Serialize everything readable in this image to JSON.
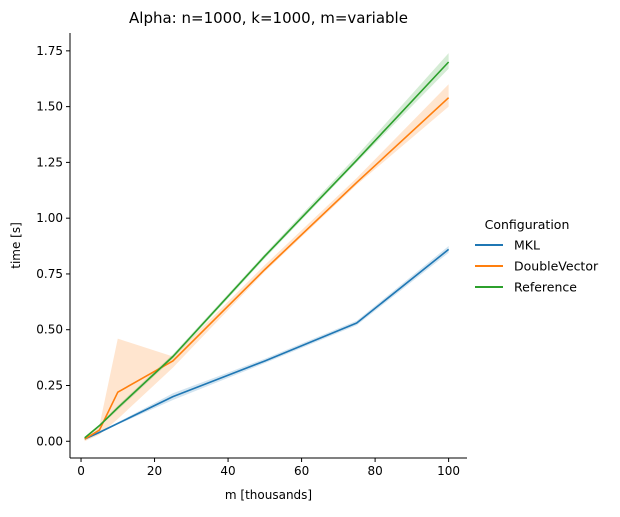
{
  "chart_data": {
    "type": "line",
    "title": "Alpha: n=1000, k=1000, m=variable",
    "xlabel": "m [thousands]",
    "ylabel": "time [s]",
    "xlim": [
      -3,
      105
    ],
    "ylim": [
      -0.075,
      1.83
    ],
    "xticks": [
      0,
      20,
      40,
      60,
      80,
      100
    ],
    "yticks": [
      0.0,
      0.25,
      0.5,
      0.75,
      1.0,
      1.25,
      1.5,
      1.75
    ],
    "xtick_labels": [
      "0",
      "20",
      "40",
      "60",
      "80",
      "100"
    ],
    "ytick_labels": [
      "0.00",
      "0.25",
      "0.50",
      "0.75",
      "1.00",
      "1.25",
      "1.50",
      "1.75"
    ],
    "grid": false,
    "legend": {
      "title": "Configuration",
      "placement": "outside-right"
    },
    "series": [
      {
        "name": "MKL",
        "color": "#1f77b4",
        "x": [
          1,
          5,
          10,
          25,
          50,
          75,
          100
        ],
        "y": [
          0.01,
          0.04,
          0.08,
          0.2,
          0.36,
          0.53,
          0.86
        ],
        "ci_low": [
          0.005,
          0.035,
          0.075,
          0.185,
          0.35,
          0.52,
          0.845
        ],
        "ci_high": [
          0.015,
          0.045,
          0.085,
          0.215,
          0.37,
          0.54,
          0.875
        ]
      },
      {
        "name": "DoubleVector",
        "color": "#ff7f0e",
        "x": [
          1,
          5,
          10,
          25,
          50,
          75,
          100
        ],
        "y": [
          0.01,
          0.05,
          0.22,
          0.36,
          0.77,
          1.16,
          1.54
        ],
        "ci_low": [
          0.0,
          0.03,
          0.1,
          0.33,
          0.76,
          1.15,
          1.5
        ],
        "ci_high": [
          0.02,
          0.07,
          0.46,
          0.38,
          0.79,
          1.18,
          1.6
        ]
      },
      {
        "name": "Reference",
        "color": "#2ca02c",
        "x": [
          1,
          5,
          10,
          25,
          50,
          75,
          100
        ],
        "y": [
          0.015,
          0.07,
          0.15,
          0.38,
          0.83,
          1.26,
          1.7
        ],
        "ci_low": [
          0.01,
          0.065,
          0.14,
          0.37,
          0.82,
          1.25,
          1.67
        ],
        "ci_high": [
          0.02,
          0.075,
          0.16,
          0.39,
          0.84,
          1.28,
          1.74
        ]
      }
    ]
  }
}
